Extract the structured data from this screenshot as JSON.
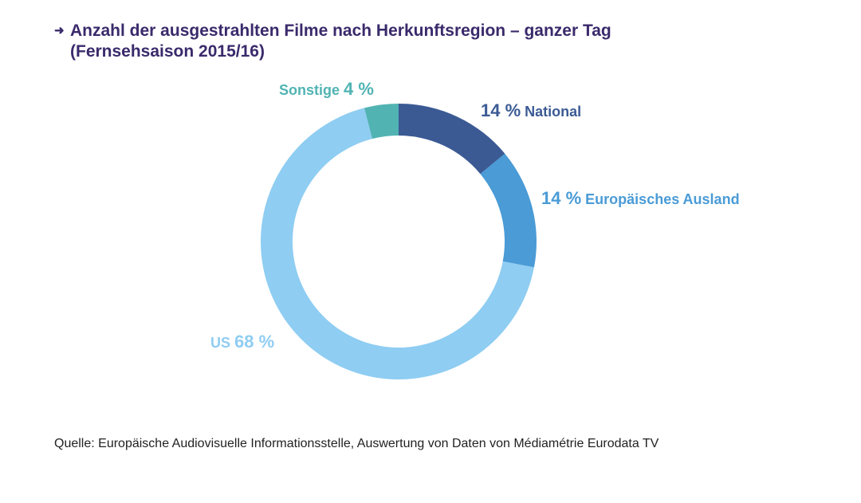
{
  "title": {
    "line1": "Anzahl der ausgestrahlten Filme nach Herkunftsregion – ganzer Tag",
    "line2": "(Fernsehsaison 2015/16)",
    "arrow_icon": "arrow-right-icon"
  },
  "chart_data": {
    "type": "pie",
    "subtype": "donut",
    "title": "Anzahl der ausgestrahlten Filme nach Herkunftsregion – ganzer Tag (Fernsehsaison 2015/16)",
    "slices": [
      {
        "name": "National",
        "value": 14,
        "label_value": "14 %",
        "color": "#3b5a94"
      },
      {
        "name": "Europäisches Ausland",
        "value": 14,
        "label_value": "14 %",
        "color": "#4a9bd6"
      },
      {
        "name": "US",
        "value": 68,
        "label_value": "68 %",
        "color": "#8fcdf2"
      },
      {
        "name": "Sonstige",
        "value": 4,
        "label_value": "4 %",
        "color": "#52b3b3"
      }
    ]
  },
  "source": "Quelle: Europäische Audiovisuelle Informationsstelle, Auswertung von Daten von Médiamétrie Eurodata TV"
}
